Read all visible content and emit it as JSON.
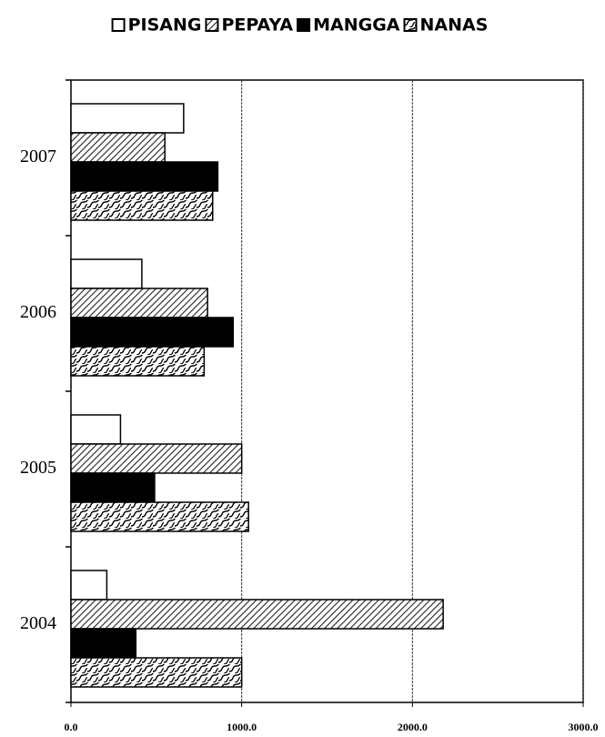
{
  "chart_data": {
    "type": "barh",
    "categories": [
      "2004",
      "2005",
      "2006",
      "2007"
    ],
    "series": [
      {
        "name": "PISANG",
        "color": "#ffffff",
        "pattern": "none",
        "values": [
          210,
          290,
          415,
          660
        ]
      },
      {
        "name": "PEPAYA",
        "color": "#888888",
        "pattern": "diagonal",
        "values": [
          2180,
          1000,
          800,
          550
        ]
      },
      {
        "name": "MANGGA",
        "color": "#000000",
        "pattern": "none",
        "values": [
          380,
          490,
          950,
          860
        ]
      },
      {
        "name": "NANAS",
        "color": "#444444",
        "pattern": "wave",
        "values": [
          1000,
          1040,
          780,
          830
        ]
      }
    ],
    "xlim": [
      0,
      3000
    ],
    "xticks": [
      {
        "value": 0,
        "label": "0.0"
      },
      {
        "value": 1000,
        "label": "1000.0"
      },
      {
        "value": 2000,
        "label": "2000.0"
      },
      {
        "value": 3000,
        "label": "3000.0"
      }
    ],
    "grid": true,
    "legend": "top"
  }
}
